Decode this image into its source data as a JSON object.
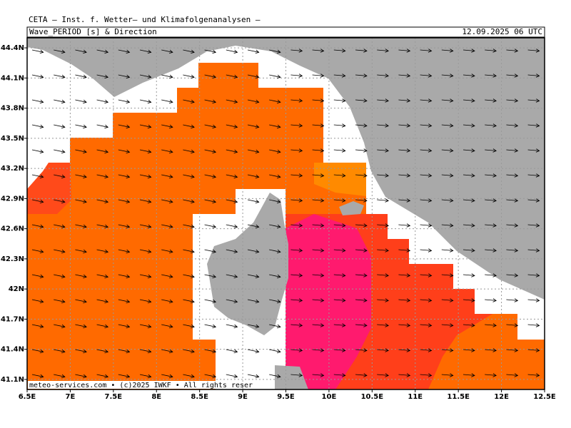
{
  "header": {
    "institute": "CETA — Inst. f. Wetter— und Klimafolgenanalysen —"
  },
  "map": {
    "title": "Wave_PERIOD [s] & Direction",
    "valid_time": "12.09.2025 06 UTC",
    "footer": "meteo-services.com • (c)2025 IWKF • All rights reser",
    "xlim": [
      6.5,
      12.5
    ],
    "ylim": [
      41.0,
      44.5
    ],
    "xticks": [
      {
        "value": 6.5,
        "label": "6.5E"
      },
      {
        "value": 7,
        "label": "7E"
      },
      {
        "value": 7.5,
        "label": "7.5E"
      },
      {
        "value": 8,
        "label": "8E"
      },
      {
        "value": 8.5,
        "label": "8.5E"
      },
      {
        "value": 9,
        "label": "9E"
      },
      {
        "value": 9.5,
        "label": "9.5E"
      },
      {
        "value": 10,
        "label": "10E"
      },
      {
        "value": 10.5,
        "label": "10.5E"
      },
      {
        "value": 11,
        "label": "11E"
      },
      {
        "value": 11.5,
        "label": "11.5E"
      },
      {
        "value": 12,
        "label": "12E"
      },
      {
        "value": 12.5,
        "label": "12.5E"
      }
    ],
    "yticks": [
      {
        "value": 41.1,
        "label": "41.1N"
      },
      {
        "value": 41.4,
        "label": "41.4N"
      },
      {
        "value": 41.7,
        "label": "41.7N"
      },
      {
        "value": 42,
        "label": "42N"
      },
      {
        "value": 42.3,
        "label": "42.3N"
      },
      {
        "value": 42.6,
        "label": "42.6N"
      },
      {
        "value": 42.9,
        "label": "42.9N"
      },
      {
        "value": 43.2,
        "label": "43.2N"
      },
      {
        "value": 43.5,
        "label": "43.5N"
      },
      {
        "value": 43.8,
        "label": "43.8N"
      },
      {
        "value": 44.1,
        "label": "44.1N"
      },
      {
        "value": 44.4,
        "label": "44.4N"
      }
    ]
  }
}
